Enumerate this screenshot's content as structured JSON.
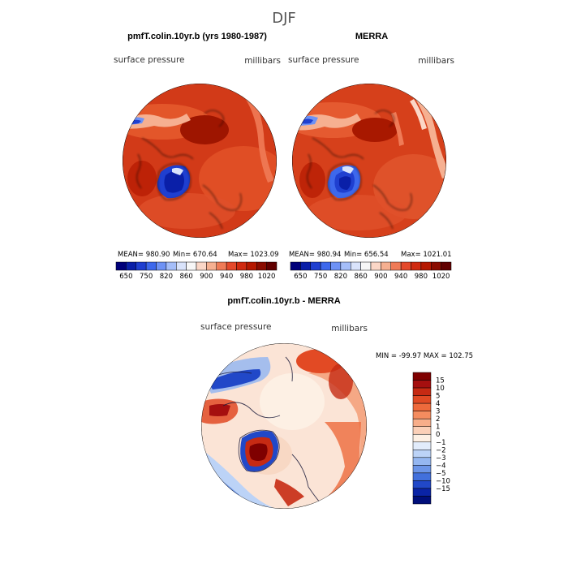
{
  "figure": {
    "season": "DJF"
  },
  "panels": [
    {
      "title": "pmfT.colin.10yr.b (yrs 1980-1987)",
      "left_label": "surface pressure",
      "right_label": "millibars",
      "stats": {
        "mean": "MEAN= 980.90",
        "min": "Min= 670.64",
        "max": "Max= 1023.09"
      }
    },
    {
      "title": "MERRA",
      "left_label": "surface pressure",
      "right_label": "millibars",
      "stats": {
        "mean": "MEAN= 980.94",
        "min": "Min= 656.54",
        "max": "Max= 1021.01"
      }
    },
    {
      "title": "pmfT.colin.10yr.b - MERRA",
      "left_label": "surface pressure",
      "right_label": "millibars",
      "stats_line": "MIN = -99.97 MAX = 102.75"
    }
  ],
  "chart_data": [
    {
      "type": "heatmap",
      "projection": "north-polar-stereographic",
      "title": "pmfT.colin.10yr.b (yrs 1980-1987)",
      "variable": "surface pressure",
      "units": "millibars",
      "mean": 980.9,
      "min": 670.64,
      "max": 1023.09,
      "colorbar": {
        "orientation": "horizontal",
        "levels": [
          650,
          700,
          750,
          800,
          820,
          840,
          860,
          880,
          900,
          920,
          940,
          960,
          980,
          1000,
          1020
        ],
        "tick_labels": [
          "650",
          "750",
          "820",
          "860",
          "900",
          "940",
          "980",
          "1020"
        ],
        "colors": [
          "#00007a",
          "#0a1fa8",
          "#1f3fd0",
          "#3d68ec",
          "#6e92f5",
          "#a5bef9",
          "#d9e3fb",
          "#f7f7f7",
          "#fbd7c7",
          "#f6b091",
          "#ef7b57",
          "#e4492b",
          "#d02a10",
          "#b51800",
          "#8a0c00",
          "#610000"
        ]
      }
    },
    {
      "type": "heatmap",
      "projection": "north-polar-stereographic",
      "title": "MERRA",
      "variable": "surface pressure",
      "units": "millibars",
      "mean": 980.94,
      "min": 656.54,
      "max": 1021.01,
      "colorbar": {
        "orientation": "horizontal",
        "levels": [
          650,
          700,
          750,
          800,
          820,
          840,
          860,
          880,
          900,
          920,
          940,
          960,
          980,
          1000,
          1020
        ],
        "tick_labels": [
          "650",
          "750",
          "820",
          "860",
          "900",
          "940",
          "980",
          "1020"
        ],
        "colors": [
          "#00007a",
          "#0a1fa8",
          "#1f3fd0",
          "#3d68ec",
          "#6e92f5",
          "#a5bef9",
          "#d9e3fb",
          "#f7f7f7",
          "#fbd7c7",
          "#f6b091",
          "#ef7b57",
          "#e4492b",
          "#d02a10",
          "#b51800",
          "#8a0c00",
          "#610000"
        ]
      }
    },
    {
      "type": "heatmap",
      "projection": "north-polar-stereographic",
      "title": "pmfT.colin.10yr.b - MERRA",
      "variable": "surface pressure",
      "units": "millibars",
      "min": -99.97,
      "max": 102.75,
      "colorbar": {
        "orientation": "vertical",
        "levels": [
          -15,
          -10,
          -5,
          -4,
          -3,
          -2,
          -1,
          0,
          1,
          2,
          3,
          4,
          5,
          10,
          15
        ],
        "tick_labels": [
          "-15",
          "-10",
          "-5",
          "-4",
          "-3",
          "-2",
          "-1",
          "0",
          "1",
          "2",
          "3",
          "4",
          "5",
          "10",
          "15"
        ],
        "colors": [
          "#7f0000",
          "#a50f0f",
          "#c62a13",
          "#e04a24",
          "#ee6a3c",
          "#f48c5f",
          "#f8ae8a",
          "#fbd0b8",
          "#fdf0e4",
          "#e2ecfb",
          "#bcd3f7",
          "#95b7f1",
          "#6c95e8",
          "#4270dc",
          "#2148c8",
          "#0a24a6",
          "#000f7a"
        ]
      }
    }
  ]
}
